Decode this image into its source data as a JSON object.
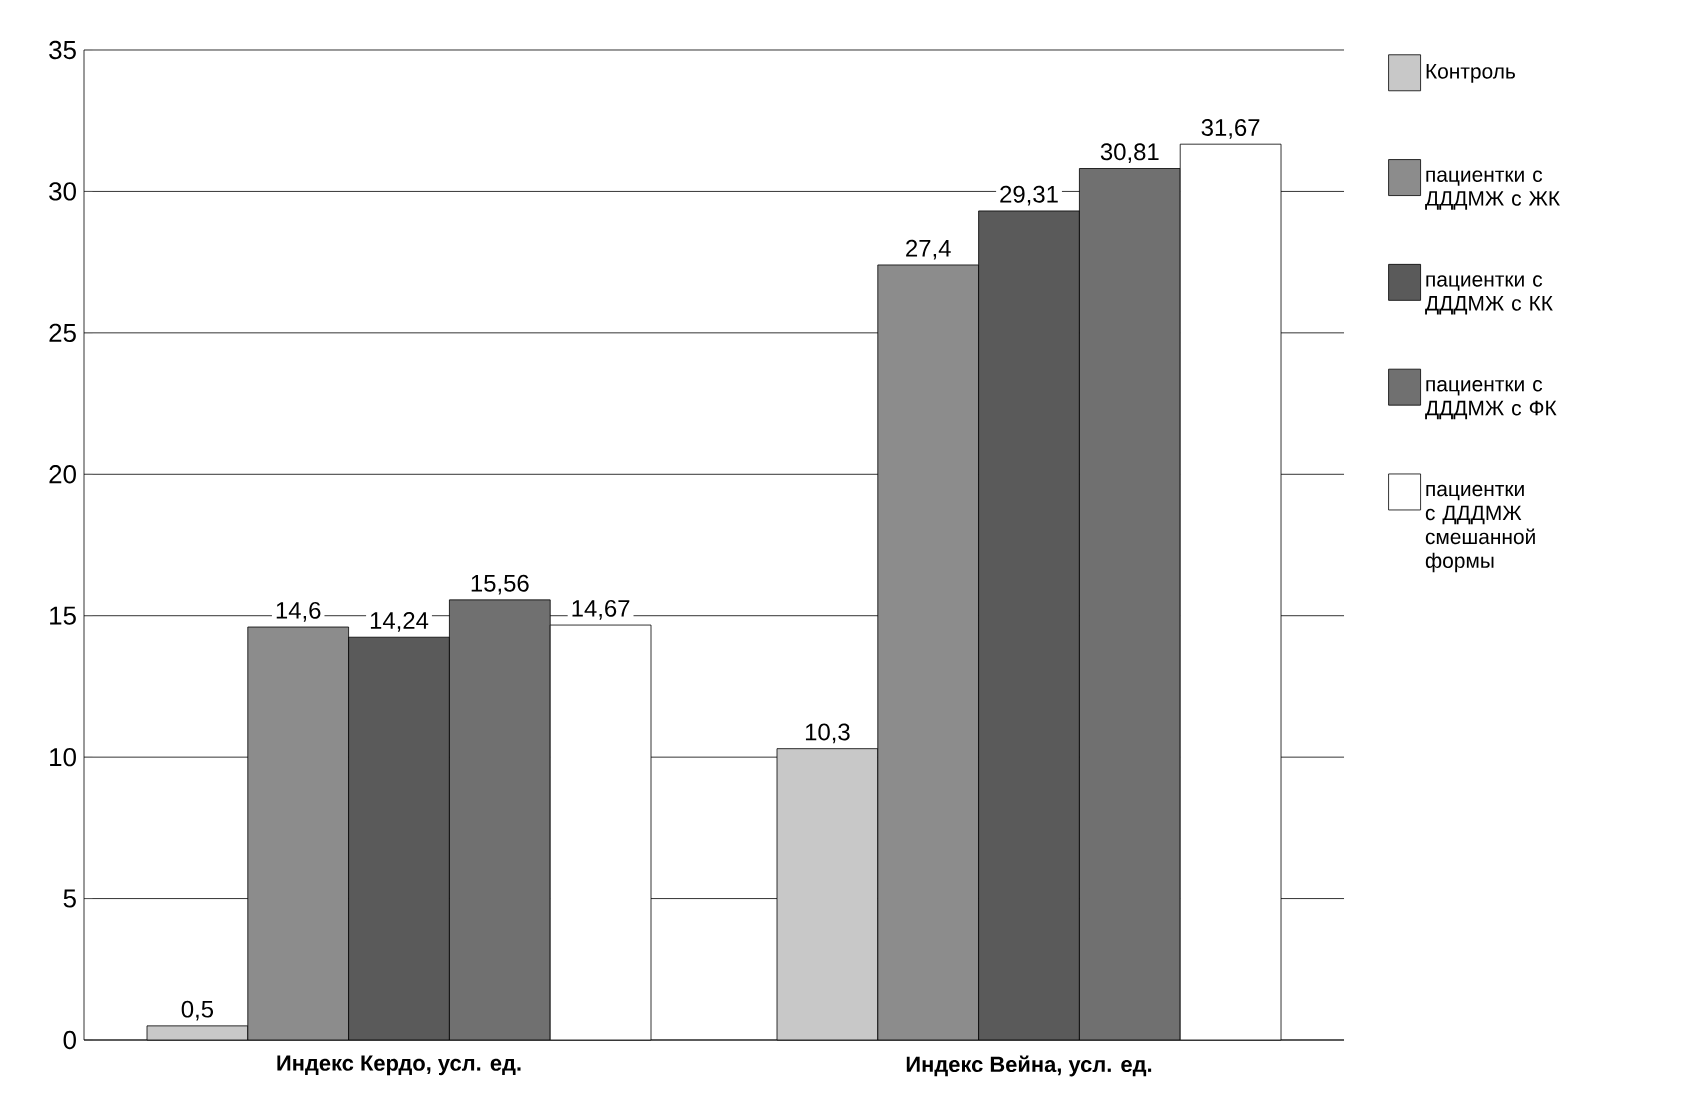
{
  "chart_data": {
    "type": "bar",
    "categories": [
      "Индекс Кердо, усл. ед.",
      "Индекс Вейна, усл. ед."
    ],
    "series": [
      {
        "name": "Контроль",
        "color": "#c8c8c8",
        "values": [
          0.5,
          10.3
        ],
        "value_labels": [
          "0,5",
          "10,3"
        ]
      },
      {
        "name": "пациентки с ДДДМЖ с ЖК",
        "color": "#8c8c8c",
        "values": [
          14.6,
          27.4
        ],
        "value_labels": [
          "14,6",
          "27,4"
        ]
      },
      {
        "name": "пациентки с ДДДМЖ с КК",
        "color": "#5a5a5a",
        "values": [
          14.24,
          29.31
        ],
        "value_labels": [
          "14,24",
          "29,31"
        ]
      },
      {
        "name": "пациентки с ДДДМЖ с ФК",
        "color": "#707070",
        "values": [
          15.56,
          30.81
        ],
        "value_labels": [
          "15,56",
          "30,81"
        ]
      },
      {
        "name": "пациентки с ДДДМЖ смешанной формы",
        "color": "#ffffff",
        "values": [
          14.67,
          31.67
        ],
        "value_labels": [
          "14,67",
          "31,67"
        ]
      }
    ],
    "ylim": [
      0,
      35
    ],
    "yticks": [
      0,
      5,
      10,
      15,
      20,
      25,
      30,
      35
    ],
    "grid": "y",
    "legend": "right"
  }
}
